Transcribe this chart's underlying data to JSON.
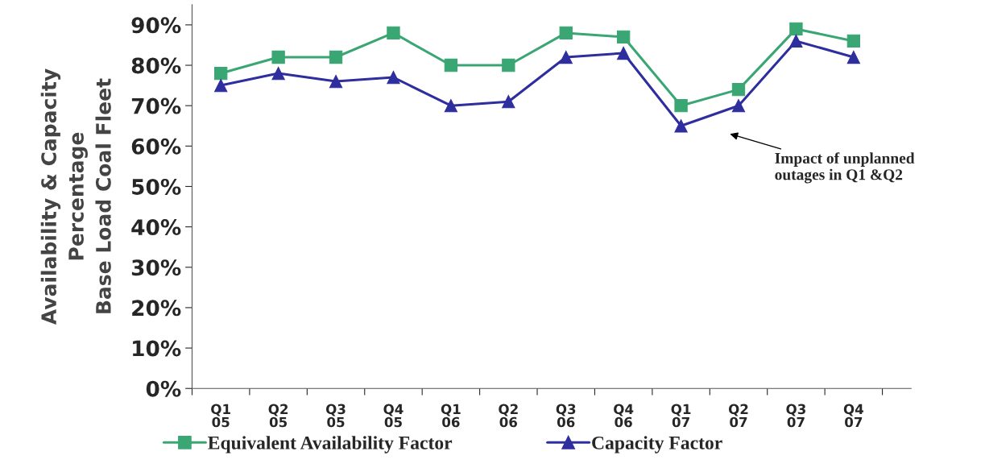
{
  "chart_data": {
    "type": "line",
    "categories": [
      "Q1\n05",
      "Q2\n05",
      "Q3\n05",
      "Q4\n05",
      "Q1\n06",
      "Q2\n06",
      "Q3\n06",
      "Q4\n06",
      "Q1\n07",
      "Q2\n07",
      "Q3\n07",
      "Q4\n07"
    ],
    "series": [
      {
        "name": "Equivalent Availability Factor",
        "color": "#3aa673",
        "marker": "square",
        "values": [
          78,
          82,
          82,
          88,
          80,
          80,
          88,
          87,
          70,
          74,
          89,
          86
        ]
      },
      {
        "name": "Capacity Factor",
        "color": "#2e2e9e",
        "marker": "triangle",
        "values": [
          75,
          78,
          76,
          77,
          70,
          71,
          82,
          83,
          65,
          70,
          86,
          82
        ]
      }
    ],
    "ylabel": "Availability & Capacity\nPercentage\nBase Load Coal Fleet",
    "ylim": [
      0,
      95
    ],
    "yticks": [
      {
        "value": 0,
        "label": "0%"
      },
      {
        "value": 10,
        "label": "10%"
      },
      {
        "value": 20,
        "label": "20%"
      },
      {
        "value": 30,
        "label": "30%"
      },
      {
        "value": 40,
        "label": "40%"
      },
      {
        "value": 50,
        "label": "50%"
      },
      {
        "value": 60,
        "label": "60%"
      },
      {
        "value": 70,
        "label": "70%"
      },
      {
        "value": 80,
        "label": "80%"
      },
      {
        "value": 90,
        "label": "90%"
      }
    ],
    "annotations": [
      "Impact of unplanned\noutages in Q1 &Q2"
    ],
    "grid": false,
    "legend": "bottom",
    "line_style": "solid"
  }
}
